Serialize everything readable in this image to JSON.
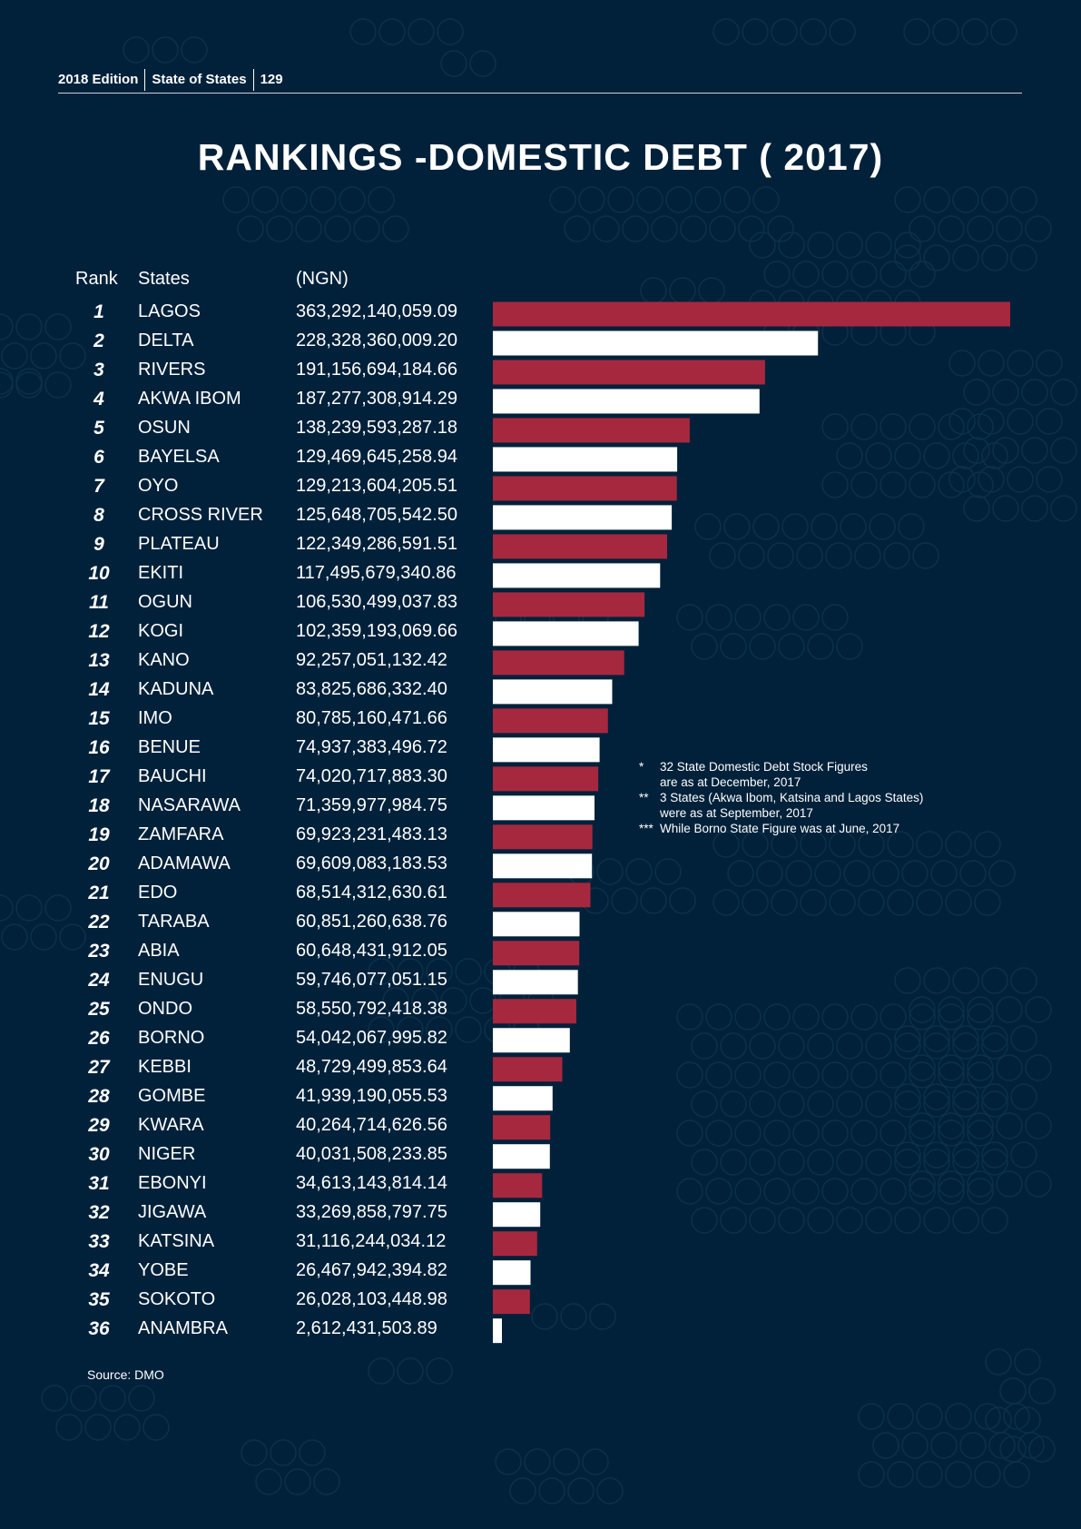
{
  "header": {
    "edition": "2018 Edition",
    "publication": "State of States",
    "page": "129"
  },
  "title": "RANKINGS -DOMESTIC DEBT ( 2017)",
  "columns": {
    "rank": "Rank",
    "states": "States",
    "value": "(NGN)"
  },
  "colors": {
    "background": "#01213a",
    "bar_red": "#a6283f",
    "bar_white": "#ffffff",
    "circle": "#0d3049"
  },
  "notes": [
    {
      "marker": "*",
      "lines": [
        "32 State Domestic Debt Stock Figures",
        "are as at December, 2017"
      ]
    },
    {
      "marker": "**",
      "lines": [
        "3 States (Akwa Ibom, Katsina and Lagos States)",
        "were as at September, 2017"
      ]
    },
    {
      "marker": "***",
      "lines": [
        "While Borno State Figure was at June, 2017"
      ]
    }
  ],
  "source": "Source: DMO",
  "chart_data": {
    "type": "bar",
    "orientation": "horizontal",
    "title": "RANKINGS -DOMESTIC DEBT ( 2017)",
    "value_unit": "NGN",
    "rows": [
      {
        "rank": "1",
        "state": "LAGOS",
        "value_text": "363,292,140,059.09",
        "value": 363292140059.09
      },
      {
        "rank": "2",
        "state": "DELTA",
        "value_text": "228,328,360,009.20",
        "value": 228328360009.2
      },
      {
        "rank": "3",
        "state": "RIVERS",
        "value_text": "191,156,694,184.66",
        "value": 191156694184.66
      },
      {
        "rank": "4",
        "state": "AKWA IBOM",
        "value_text": "187,277,308,914.29",
        "value": 187277308914.29
      },
      {
        "rank": "5",
        "state": "OSUN",
        "value_text": "138,239,593,287.18",
        "value": 138239593287.18
      },
      {
        "rank": "6",
        "state": "BAYELSA",
        "value_text": "129,469,645,258.94",
        "value": 129469645258.94
      },
      {
        "rank": "7",
        "state": "OYO",
        "value_text": "129,213,604,205.51",
        "value": 129213604205.51
      },
      {
        "rank": "8",
        "state": "CROSS RIVER",
        "value_text": "125,648,705,542.50",
        "value": 125648705542.5
      },
      {
        "rank": "9",
        "state": "PLATEAU",
        "value_text": "122,349,286,591.51",
        "value": 122349286591.51
      },
      {
        "rank": "10",
        "state": "EKITI",
        "value_text": "117,495,679,340.86",
        "value": 117495679340.86
      },
      {
        "rank": "11",
        "state": "OGUN",
        "value_text": "106,530,499,037.83",
        "value": 106530499037.83
      },
      {
        "rank": "12",
        "state": "KOGI",
        "value_text": "102,359,193,069.66",
        "value": 102359193069.66
      },
      {
        "rank": "13",
        "state": "KANO",
        "value_text": "92,257,051,132.42",
        "value": 92257051132.42
      },
      {
        "rank": "14",
        "state": "KADUNA",
        "value_text": "83,825,686,332.40",
        "value": 83825686332.4
      },
      {
        "rank": "15",
        "state": "IMO",
        "value_text": "80,785,160,471.66",
        "value": 80785160471.66
      },
      {
        "rank": "16",
        "state": "BENUE",
        "value_text": "74,937,383,496.72",
        "value": 74937383496.72
      },
      {
        "rank": "17",
        "state": "BAUCHI",
        "value_text": "74,020,717,883.30",
        "value": 74020717883.3
      },
      {
        "rank": "18",
        "state": "NASARAWA",
        "value_text": "71,359,977,984.75",
        "value": 71359977984.75
      },
      {
        "rank": "19",
        "state": "ZAMFARA",
        "value_text": "69,923,231,483.13",
        "value": 69923231483.13
      },
      {
        "rank": "20",
        "state": "ADAMAWA",
        "value_text": "69,609,083,183.53",
        "value": 69609083183.53
      },
      {
        "rank": "21",
        "state": "EDO",
        "value_text": "68,514,312,630.61",
        "value": 68514312630.61
      },
      {
        "rank": "22",
        "state": "TARABA",
        "value_text": "60,851,260,638.76",
        "value": 60851260638.76
      },
      {
        "rank": "23",
        "state": "ABIA",
        "value_text": "60,648,431,912.05",
        "value": 60648431912.05
      },
      {
        "rank": "24",
        "state": "ENUGU",
        "value_text": "59,746,077,051.15",
        "value": 59746077051.15
      },
      {
        "rank": "25",
        "state": "ONDO",
        "value_text": "58,550,792,418.38",
        "value": 58550792418.38
      },
      {
        "rank": "26",
        "state": "BORNO",
        "value_text": "54,042,067,995.82",
        "value": 54042067995.82
      },
      {
        "rank": "27",
        "state": "KEBBI",
        "value_text": "48,729,499,853.64",
        "value": 48729499853.64
      },
      {
        "rank": "28",
        "state": "GOMBE",
        "value_text": "41,939,190,055.53",
        "value": 41939190055.53
      },
      {
        "rank": "29",
        "state": "KWARA",
        "value_text": "40,264,714,626.56",
        "value": 40264714626.56
      },
      {
        "rank": "30",
        "state": "NIGER",
        "value_text": "40,031,508,233.85",
        "value": 40031508233.85
      },
      {
        "rank": "31",
        "state": "EBONYI",
        "value_text": "34,613,143,814.14",
        "value": 34613143814.14
      },
      {
        "rank": "32",
        "state": "JIGAWA",
        "value_text": "33,269,858,797.75",
        "value": 33269858797.75
      },
      {
        "rank": "33",
        "state": "KATSINA",
        "value_text": "31,116,244,034.12",
        "value": 31116244034.12
      },
      {
        "rank": "34",
        "state": "YOBE",
        "value_text": "26,467,942,394.82",
        "value": 26467942394.82
      },
      {
        "rank": "35",
        "state": "SOKOTO",
        "value_text": "26,028,103,448.98",
        "value": 26028103448.98
      },
      {
        "rank": "36",
        "state": "ANAMBRA",
        "value_text": "2,612,431,503.89",
        "value": 2612431503.89
      }
    ],
    "bar_colors_alternate": [
      "#a6283f",
      "#ffffff"
    ],
    "xlim": [
      0,
      363292140059.09
    ]
  }
}
